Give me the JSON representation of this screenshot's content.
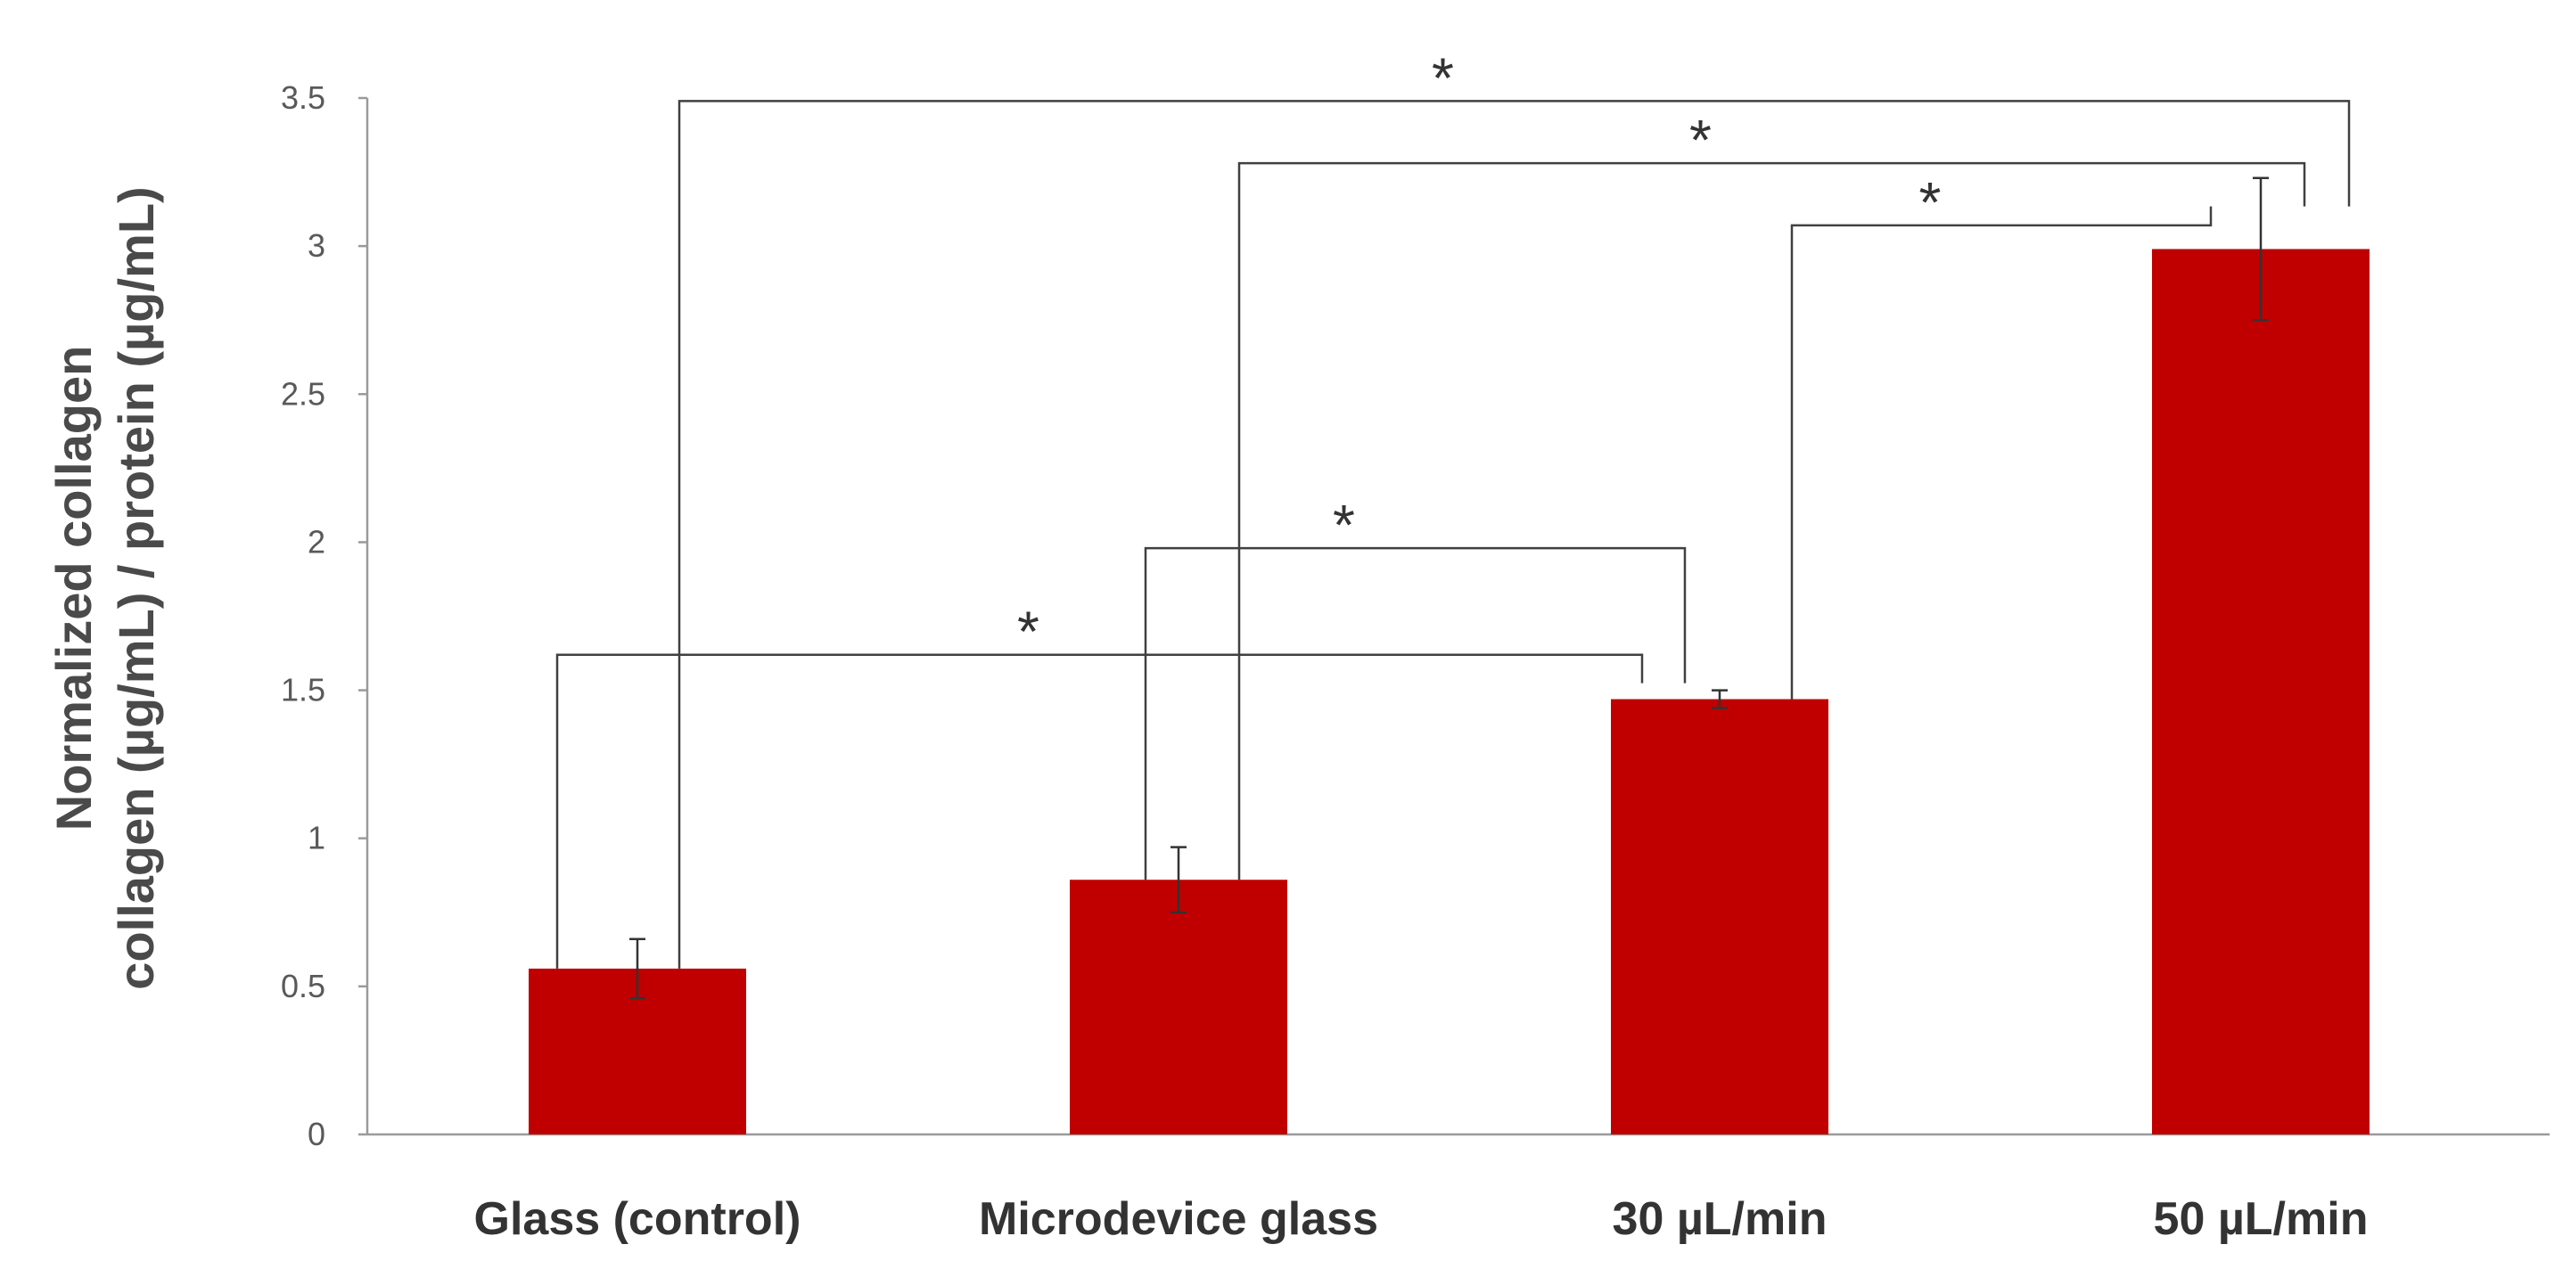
{
  "chart_data": {
    "type": "bar",
    "title": "",
    "xlabel": "",
    "ylabel_lines": [
      "Normalized collagen",
      "collagen (µg/mL)  /  protein (µg/mL)"
    ],
    "categories": [
      "Glass (control)",
      "Microdevice glass",
      "30 µL/min",
      "50 µL/min"
    ],
    "values": [
      0.56,
      0.86,
      1.47,
      2.99
    ],
    "errors": [
      0.1,
      0.11,
      0.03,
      0.24
    ],
    "ylim": [
      0,
      3.5
    ],
    "yticks": [
      0,
      0.5,
      1,
      1.5,
      2,
      2.5,
      3,
      3.5
    ],
    "ytick_labels": [
      "0",
      "0.5",
      "1",
      "1.5",
      "2",
      "2.5",
      "3",
      "3.5"
    ],
    "bar_color": "#c00000",
    "grid": false,
    "significance": [
      {
        "from": 0,
        "to": 2,
        "height": 1.62,
        "label": "*"
      },
      {
        "from": 1,
        "to": 2,
        "height": 1.98,
        "label": "*"
      },
      {
        "from": 2,
        "to": 3,
        "height": 3.07,
        "label": "*"
      },
      {
        "from": 1,
        "to": 3,
        "height": 3.28,
        "label": "*"
      },
      {
        "from": 0,
        "to": 3,
        "height": 3.49,
        "label": "*"
      }
    ]
  }
}
